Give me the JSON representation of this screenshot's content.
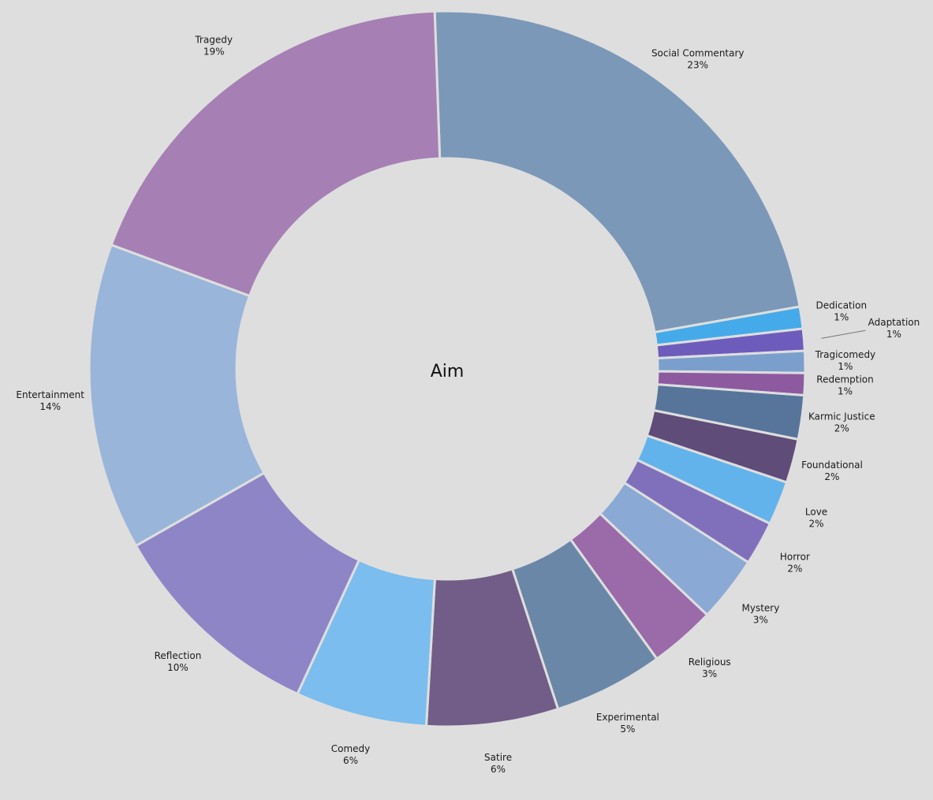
{
  "chart_data": {
    "type": "pie",
    "variant": "donut",
    "title": "Aim",
    "slices": [
      {
        "name": "Social Commentary",
        "value": 23,
        "label": "23%",
        "color": "#7b98b8"
      },
      {
        "name": "Dedication",
        "value": 1,
        "label": "1%",
        "color": "#45aaea"
      },
      {
        "name": "Adaptation",
        "value": 1,
        "label": "1%",
        "color": "#6e5cbd"
      },
      {
        "name": "Tragicomedy",
        "value": 1,
        "label": "1%",
        "color": "#7b9fcd"
      },
      {
        "name": "Redemption",
        "value": 1,
        "label": "1%",
        "color": "#8d5aa0"
      },
      {
        "name": "Karmic Justice",
        "value": 2,
        "label": "2%",
        "color": "#57759b"
      },
      {
        "name": "Foundational",
        "value": 2,
        "label": "2%",
        "color": "#5f4c78"
      },
      {
        "name": "Love",
        "value": 2,
        "label": "2%",
        "color": "#62b3eb"
      },
      {
        "name": "Horror",
        "value": 2,
        "label": "2%",
        "color": "#8070bc"
      },
      {
        "name": "Mystery",
        "value": 3,
        "label": "3%",
        "color": "#8aa9d4"
      },
      {
        "name": "Religious",
        "value": 3,
        "label": "3%",
        "color": "#9a6aa9"
      },
      {
        "name": "Experimental",
        "value": 5,
        "label": "5%",
        "color": "#6b87a8"
      },
      {
        "name": "Satire",
        "value": 6,
        "label": "6%",
        "color": "#715d87"
      },
      {
        "name": "Comedy",
        "value": 6,
        "label": "6%",
        "color": "#7abdee"
      },
      {
        "name": "Reflection",
        "value": 10,
        "label": "10%",
        "color": "#8e85c7"
      },
      {
        "name": "Entertainment",
        "value": 14,
        "label": "14%",
        "color": "#99b5da"
      },
      {
        "name": "Tragedy",
        "value": 19,
        "label": "19%",
        "color": "#a67fb4"
      }
    ]
  }
}
